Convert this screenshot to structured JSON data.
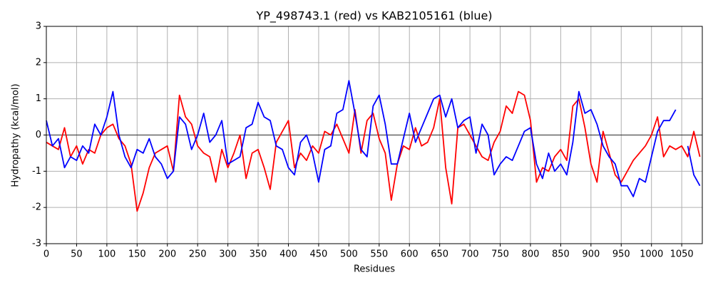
{
  "chart_data": {
    "type": "line",
    "title": "YP_498743.1 (red) vs KAB2105161 (blue)",
    "x_label": "Residues",
    "y_label": "Hydropathy (kcal/mol)",
    "x": [
      0,
      10,
      20,
      30,
      40,
      50,
      60,
      70,
      80,
      90,
      100,
      110,
      120,
      130,
      140,
      150,
      160,
      170,
      180,
      190,
      200,
      210,
      220,
      230,
      240,
      250,
      260,
      270,
      280,
      290,
      300,
      310,
      320,
      330,
      340,
      350,
      360,
      370,
      380,
      390,
      400,
      410,
      420,
      430,
      440,
      450,
      460,
      470,
      480,
      490,
      500,
      510,
      520,
      530,
      540,
      550,
      560,
      570,
      580,
      590,
      600,
      610,
      620,
      630,
      640,
      650,
      660,
      670,
      680,
      690,
      700,
      710,
      720,
      730,
      740,
      750,
      760,
      770,
      780,
      790,
      800,
      810,
      820,
      830,
      840,
      850,
      860,
      870,
      880,
      890,
      900,
      910,
      920,
      930,
      940,
      950,
      960,
      970,
      980,
      990,
      1000,
      1010,
      1020,
      1030,
      1040,
      1050,
      1060,
      1070,
      1080
    ],
    "series": [
      {
        "name": "YP_498743.1",
        "color": "#ff0000",
        "values": [
          -0.2,
          -0.3,
          -0.4,
          0.2,
          -0.6,
          -0.3,
          -0.8,
          -0.4,
          -0.5,
          0.0,
          0.2,
          0.3,
          -0.1,
          -0.3,
          -0.8,
          -2.1,
          -1.6,
          -0.9,
          -0.5,
          -0.4,
          -0.3,
          -1.0,
          1.1,
          0.5,
          0.3,
          -0.3,
          -0.5,
          -0.6,
          -1.3,
          -0.4,
          -0.9,
          -0.5,
          0.0,
          -1.2,
          -0.5,
          -0.4,
          -0.9,
          -1.5,
          -0.2,
          0.1,
          0.4,
          -0.9,
          -0.5,
          -0.7,
          -0.3,
          -0.5,
          0.1,
          0.0,
          0.3,
          -0.1,
          -0.5,
          0.7,
          -0.5,
          0.4,
          0.6,
          -0.1,
          -0.5,
          -1.8,
          -0.8,
          -0.3,
          -0.4,
          0.2,
          -0.3,
          -0.2,
          0.2,
          1.0,
          -0.9,
          -1.9,
          0.2,
          0.3,
          0.0,
          -0.3,
          -0.6,
          -0.7,
          -0.2,
          0.1,
          0.8,
          0.6,
          1.2,
          1.1,
          0.4,
          -1.3,
          -0.9,
          -1.0,
          -0.6,
          -0.4,
          -0.7,
          0.8,
          1.0,
          0.2,
          -0.8,
          -1.3,
          0.1,
          -0.5,
          -1.1,
          -1.3,
          -1.0,
          -0.7,
          -0.5,
          -0.3,
          0.0,
          0.5,
          -0.6,
          -0.3,
          -0.4,
          -0.3,
          -0.6,
          0.1,
          -0.6
        ]
      },
      {
        "name": "KAB2105161",
        "color": "#0000ff",
        "values": [
          0.4,
          -0.3,
          -0.1,
          -0.9,
          -0.6,
          -0.7,
          -0.3,
          -0.5,
          0.3,
          0.0,
          0.5,
          1.2,
          0.0,
          -0.6,
          -0.9,
          -0.4,
          -0.5,
          -0.1,
          -0.6,
          -0.8,
          -1.2,
          -1.0,
          0.5,
          0.3,
          -0.4,
          0.0,
          0.6,
          -0.2,
          0.0,
          0.4,
          -0.8,
          -0.7,
          -0.6,
          0.2,
          0.3,
          0.9,
          0.5,
          0.4,
          -0.3,
          -0.4,
          -0.9,
          -1.1,
          -0.2,
          0.0,
          -0.5,
          -1.3,
          -0.4,
          -0.3,
          0.6,
          0.7,
          1.5,
          0.6,
          -0.4,
          -0.6,
          0.8,
          1.1,
          0.3,
          -0.8,
          -0.8,
          -0.1,
          0.6,
          -0.2,
          0.2,
          0.6,
          1.0,
          1.1,
          0.5,
          1.0,
          0.2,
          0.4,
          0.5,
          -0.5,
          0.3,
          0.0,
          -1.1,
          -0.8,
          -0.6,
          -0.7,
          -0.3,
          0.1,
          0.2,
          -0.8,
          -1.2,
          -0.5,
          -1.0,
          -0.8,
          -1.1,
          -0.2,
          1.2,
          0.6,
          0.7,
          0.3,
          -0.3,
          -0.6,
          -0.8,
          -1.4,
          -1.4,
          -1.7,
          -1.2,
          -1.3,
          -0.6,
          0.1,
          0.4,
          0.4,
          0.7,
          null,
          -0.3,
          -1.1,
          -1.4
        ]
      }
    ],
    "hline": 0,
    "xlim": [
      0,
      1084
    ],
    "ylim": [
      -3,
      3
    ],
    "xticks": [
      0,
      50,
      100,
      150,
      200,
      250,
      300,
      350,
      400,
      450,
      500,
      550,
      600,
      650,
      700,
      750,
      800,
      850,
      900,
      950,
      1000,
      1050
    ],
    "yticks": [
      -3,
      -2,
      -1,
      0,
      1,
      2,
      3
    ],
    "grid": true
  }
}
